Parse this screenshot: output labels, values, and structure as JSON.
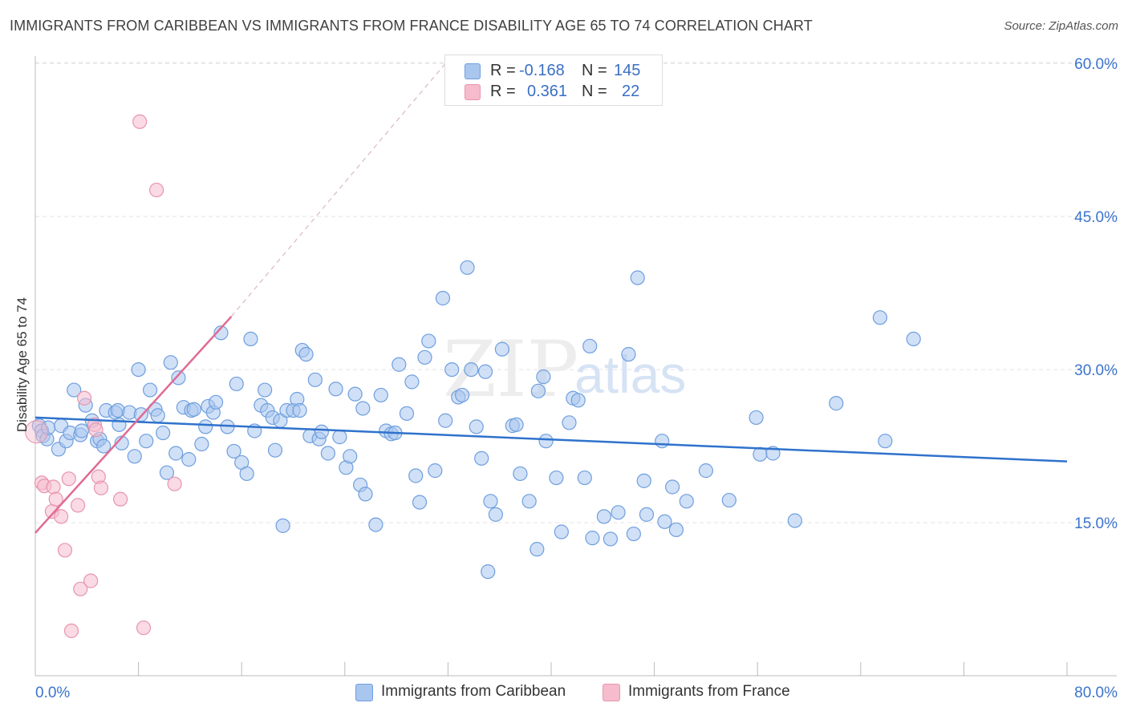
{
  "header": {
    "title": "IMMIGRANTS FROM CARIBBEAN VS IMMIGRANTS FROM FRANCE DISABILITY AGE 65 TO 74 CORRELATION CHART",
    "source": "Source: ZipAtlas.com"
  },
  "watermark": {
    "zip": "ZIP",
    "atlas": "atlas"
  },
  "legend_top": {
    "rows": [
      {
        "r_label": "R =",
        "r_value": "-0.168",
        "n_label": "N =",
        "n_value": "145"
      },
      {
        "r_label": "R =",
        "r_value": "0.361",
        "n_label": "N =",
        "n_value": "22"
      }
    ]
  },
  "legend_bottom": {
    "items": [
      {
        "label": "Immigrants from Caribbean"
      },
      {
        "label": "Immigrants from France"
      }
    ]
  },
  "chart_data": {
    "type": "scatter",
    "title": "IMMIGRANTS FROM CARIBBEAN VS IMMIGRANTS FROM FRANCE DISABILITY AGE 65 TO 74 CORRELATION CHART",
    "xlabel": "",
    "ylabel": "Disability Age 65 to 74",
    "xlim": [
      0,
      80
    ],
    "ylim": [
      0,
      63
    ],
    "x_tick_labels": [
      "0.0%",
      "80.0%"
    ],
    "y_ticks": [
      15,
      30,
      45,
      60
    ],
    "y_tick_labels": [
      "15.0%",
      "30.0%",
      "45.0%",
      "60.0%"
    ],
    "grid": true,
    "legend_position": "bottom",
    "colors": {
      "caribbean_fill": "#a9c6ef",
      "caribbean_edge": "#6f9fdf",
      "caribbean_line": "#2f72cc",
      "france_fill": "#f6bccd",
      "france_edge": "#e795ae",
      "france_line": "#e06b95",
      "axis_text": "#3b74cc",
      "grid": "#e3e3e3"
    },
    "series": [
      {
        "name": "Immigrants from Caribbean",
        "R": -0.168,
        "N": 145,
        "trend": {
          "x": [
            0,
            80
          ],
          "y": [
            25.3,
            21.0
          ]
        },
        "points": [
          [
            0.3,
            24.5
          ],
          [
            0.5,
            24.0
          ],
          [
            0.6,
            23.5
          ],
          [
            0.9,
            23.2
          ],
          [
            1.0,
            24.3
          ],
          [
            1.8,
            22.2
          ],
          [
            2.0,
            24.5
          ],
          [
            2.4,
            23.0
          ],
          [
            2.7,
            23.8
          ],
          [
            3.0,
            28.0
          ],
          [
            3.5,
            23.6
          ],
          [
            3.6,
            24.0
          ],
          [
            3.9,
            26.5
          ],
          [
            4.4,
            25.0
          ],
          [
            4.8,
            23.0
          ],
          [
            5.0,
            23.2
          ],
          [
            5.3,
            22.5
          ],
          [
            5.5,
            26.0
          ],
          [
            6.2,
            25.8
          ],
          [
            6.5,
            24.6
          ],
          [
            6.4,
            26.0
          ],
          [
            6.7,
            22.8
          ],
          [
            7.3,
            25.8
          ],
          [
            7.7,
            21.5
          ],
          [
            8.0,
            30.0
          ],
          [
            8.2,
            25.6
          ],
          [
            8.6,
            23.0
          ],
          [
            8.9,
            28.0
          ],
          [
            9.3,
            26.1
          ],
          [
            9.5,
            25.5
          ],
          [
            9.9,
            23.8
          ],
          [
            10.2,
            19.9
          ],
          [
            10.5,
            30.7
          ],
          [
            10.9,
            21.8
          ],
          [
            11.1,
            29.2
          ],
          [
            11.5,
            26.3
          ],
          [
            11.9,
            21.2
          ],
          [
            12.1,
            26.0
          ],
          [
            12.3,
            26.1
          ],
          [
            12.9,
            22.7
          ],
          [
            13.2,
            24.4
          ],
          [
            13.4,
            26.4
          ],
          [
            13.8,
            25.8
          ],
          [
            14.0,
            26.8
          ],
          [
            14.4,
            33.6
          ],
          [
            14.9,
            24.4
          ],
          [
            15.4,
            22.0
          ],
          [
            15.6,
            28.6
          ],
          [
            16.0,
            20.9
          ],
          [
            16.4,
            19.8
          ],
          [
            16.7,
            33.0
          ],
          [
            17.0,
            24.0
          ],
          [
            17.5,
            26.5
          ],
          [
            17.8,
            28.0
          ],
          [
            18.0,
            26.0
          ],
          [
            18.4,
            25.3
          ],
          [
            18.6,
            22.1
          ],
          [
            19.0,
            25.0
          ],
          [
            19.2,
            14.7
          ],
          [
            19.5,
            26.0
          ],
          [
            20.0,
            26.0
          ],
          [
            20.3,
            27.1
          ],
          [
            20.5,
            26.0
          ],
          [
            20.7,
            31.9
          ],
          [
            21.0,
            31.5
          ],
          [
            21.3,
            23.5
          ],
          [
            21.7,
            29.0
          ],
          [
            22.0,
            23.2
          ],
          [
            22.2,
            23.9
          ],
          [
            22.7,
            21.8
          ],
          [
            23.3,
            28.1
          ],
          [
            23.6,
            23.4
          ],
          [
            24.1,
            20.4
          ],
          [
            24.4,
            21.5
          ],
          [
            24.8,
            27.6
          ],
          [
            25.2,
            18.7
          ],
          [
            25.4,
            26.2
          ],
          [
            25.6,
            17.8
          ],
          [
            26.4,
            14.8
          ],
          [
            26.8,
            27.5
          ],
          [
            27.2,
            24.0
          ],
          [
            27.6,
            23.7
          ],
          [
            27.9,
            23.8
          ],
          [
            28.2,
            30.5
          ],
          [
            28.8,
            25.7
          ],
          [
            29.2,
            28.8
          ],
          [
            29.5,
            19.6
          ],
          [
            29.8,
            17.0
          ],
          [
            30.2,
            31.2
          ],
          [
            30.5,
            32.8
          ],
          [
            31.0,
            20.1
          ],
          [
            31.6,
            37.0
          ],
          [
            31.8,
            25.0
          ],
          [
            32.3,
            30.0
          ],
          [
            32.8,
            27.3
          ],
          [
            33.1,
            27.5
          ],
          [
            33.5,
            40.0
          ],
          [
            33.8,
            30.0
          ],
          [
            34.2,
            24.4
          ],
          [
            34.9,
            29.8
          ],
          [
            34.6,
            21.3
          ],
          [
            35.1,
            10.2
          ],
          [
            35.3,
            17.1
          ],
          [
            35.7,
            15.8
          ],
          [
            36.2,
            32.0
          ],
          [
            37.0,
            24.5
          ],
          [
            37.3,
            24.6
          ],
          [
            37.6,
            19.8
          ],
          [
            38.3,
            17.1
          ],
          [
            38.9,
            12.4
          ],
          [
            39.0,
            27.9
          ],
          [
            39.4,
            29.3
          ],
          [
            39.6,
            23.0
          ],
          [
            40.4,
            19.4
          ],
          [
            40.8,
            14.1
          ],
          [
            41.4,
            24.8
          ],
          [
            41.7,
            27.2
          ],
          [
            42.1,
            27.0
          ],
          [
            42.6,
            19.4
          ],
          [
            43.0,
            32.3
          ],
          [
            43.2,
            13.5
          ],
          [
            44.1,
            15.6
          ],
          [
            44.6,
            13.4
          ],
          [
            45.2,
            16.0
          ],
          [
            46.0,
            31.5
          ],
          [
            46.4,
            13.9
          ],
          [
            46.7,
            39.0
          ],
          [
            47.2,
            19.1
          ],
          [
            47.4,
            15.8
          ],
          [
            48.6,
            23.0
          ],
          [
            48.8,
            15.1
          ],
          [
            49.4,
            18.5
          ],
          [
            49.7,
            14.3
          ],
          [
            50.5,
            17.1
          ],
          [
            52.0,
            20.1
          ],
          [
            53.8,
            17.2
          ],
          [
            55.9,
            25.3
          ],
          [
            56.2,
            21.7
          ],
          [
            57.2,
            21.8
          ],
          [
            58.9,
            15.2
          ],
          [
            62.1,
            26.7
          ],
          [
            65.5,
            35.1
          ],
          [
            65.9,
            23.0
          ],
          [
            68.1,
            33.0
          ]
        ]
      },
      {
        "name": "Immigrants from France",
        "R": 0.361,
        "N": 22,
        "trend": {
          "x": [
            0,
            15.2
          ],
          "y": [
            14.0,
            35.2
          ],
          "dashed_to": {
            "x": 32,
            "y": 60.3
          }
        },
        "points": [
          [
            0.5,
            18.9
          ],
          [
            0.7,
            18.6
          ],
          [
            1.3,
            16.1
          ],
          [
            1.4,
            18.5
          ],
          [
            1.6,
            17.3
          ],
          [
            2.0,
            15.6
          ],
          [
            2.3,
            12.3
          ],
          [
            2.6,
            19.3
          ],
          [
            2.8,
            4.4
          ],
          [
            3.3,
            16.7
          ],
          [
            3.5,
            8.5
          ],
          [
            3.8,
            27.2
          ],
          [
            4.3,
            9.3
          ],
          [
            4.6,
            24.6
          ],
          [
            4.7,
            24.1
          ],
          [
            4.9,
            19.5
          ],
          [
            5.1,
            18.4
          ],
          [
            6.6,
            17.3
          ],
          [
            8.1,
            54.3
          ],
          [
            8.4,
            4.7
          ],
          [
            9.4,
            47.6
          ],
          [
            10.8,
            18.8
          ]
        ]
      }
    ]
  }
}
